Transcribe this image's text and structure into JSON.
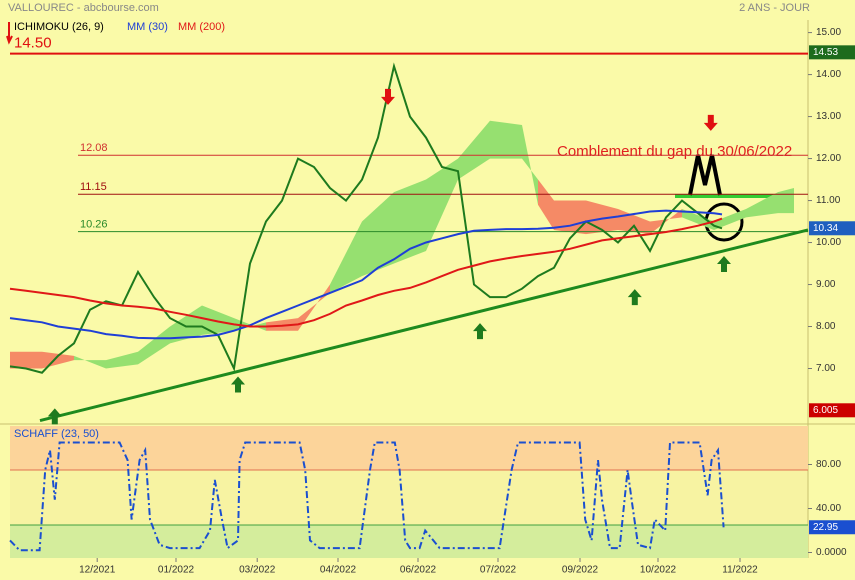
{
  "header": {
    "source": "VALLOUREC - abcbourse.com",
    "period": "2 ANS - JOUR"
  },
  "chart_data": [
    {
      "type": "line",
      "legend_title": "ICHIMOKU (26, 9)",
      "annotation": "Comblement du gap du 30/06/2022",
      "xlim": [
        0,
        99.75
      ],
      "ylim": [
        5.75,
        15.3
      ],
      "yticks": [
        {
          "value": 15,
          "label": "15.00"
        },
        {
          "value": 14,
          "label": "14.00"
        },
        {
          "value": 13,
          "label": "13.00"
        },
        {
          "value": 12,
          "label": "12.00"
        },
        {
          "value": 11,
          "label": "11.00"
        },
        {
          "value": 10,
          "label": "10.00"
        },
        {
          "value": 9,
          "label": "9.00"
        },
        {
          "value": 8,
          "label": "8.00"
        },
        {
          "value": 7,
          "label": "7.00"
        }
      ],
      "xticks": [
        {
          "value": 10.9,
          "label": "12/2021"
        },
        {
          "value": 20.75,
          "label": "01/2022"
        },
        {
          "value": 30.9,
          "label": "03/2022"
        },
        {
          "value": 41,
          "label": "04/2022"
        },
        {
          "value": 51,
          "label": "06/2022"
        },
        {
          "value": 61,
          "label": "07/2022"
        },
        {
          "value": 71.25,
          "label": "09/2022"
        },
        {
          "value": 81,
          "label": "10/2022"
        },
        {
          "value": 91.25,
          "label": "11/2022"
        }
      ],
      "x": [
        0,
        2,
        4,
        6,
        8,
        10,
        12,
        14,
        16,
        18,
        20,
        22,
        24,
        26,
        28,
        30,
        32,
        34,
        36,
        38,
        40,
        42,
        44,
        46,
        48,
        50,
        52,
        54,
        56,
        58,
        60,
        62,
        64,
        66,
        68,
        70,
        72,
        74,
        76,
        78,
        80,
        82,
        84,
        86,
        88,
        89
      ],
      "series": [
        {
          "color": "#1e7a1e",
          "values": [
            7.05,
            7.0,
            6.9,
            7.3,
            7.6,
            8.4,
            8.6,
            8.5,
            9.3,
            8.7,
            8.2,
            8.0,
            8.0,
            7.8,
            7.0,
            9.5,
            10.5,
            11.0,
            12.0,
            11.8,
            11.3,
            11.0,
            11.5,
            12.5,
            14.2,
            13.0,
            12.5,
            11.8,
            11.7,
            9.0,
            8.7,
            8.7,
            8.9,
            9.2,
            9.4,
            10.1,
            10.5,
            10.3,
            10.0,
            10.4,
            9.8,
            10.6,
            11.0,
            10.7,
            10.4,
            10.34
          ],
          "last_color": "#1f5fbf"
        },
        {
          "name": "MM (30)",
          "color": "#1f3fd6",
          "values": [
            8.2,
            8.15,
            8.1,
            8.0,
            7.95,
            7.9,
            7.82,
            7.78,
            7.73,
            7.72,
            7.72,
            7.74,
            7.76,
            7.8,
            7.9,
            8.03,
            8.2,
            8.35,
            8.5,
            8.65,
            8.8,
            8.95,
            9.1,
            9.4,
            9.6,
            9.85,
            10.0,
            10.1,
            10.2,
            10.28,
            10.3,
            10.32,
            10.32,
            10.33,
            10.35,
            10.4,
            10.5,
            10.57,
            10.62,
            10.68,
            10.74,
            10.76,
            10.74,
            10.72,
            10.7,
            10.67
          ]
        },
        {
          "name": "MM (200)",
          "color": "#e01818",
          "values": [
            8.9,
            8.85,
            8.8,
            8.75,
            8.7,
            8.62,
            8.55,
            8.5,
            8.47,
            8.43,
            8.35,
            8.28,
            8.2,
            8.12,
            8.05,
            8.0,
            8.0,
            8.02,
            8.05,
            8.15,
            8.3,
            8.5,
            8.62,
            8.75,
            8.85,
            8.92,
            9.05,
            9.2,
            9.35,
            9.45,
            9.55,
            9.62,
            9.68,
            9.73,
            9.78,
            9.85,
            9.95,
            10.05,
            10.1,
            10.15,
            10.2,
            10.25,
            10.32,
            10.4,
            10.5,
            10.57
          ]
        }
      ],
      "cloud": {
        "up_color": "#96e070",
        "down_color": "#f58a66",
        "x": [
          0,
          4,
          8,
          12,
          16,
          20,
          24,
          28,
          32,
          36,
          40,
          44,
          48,
          52,
          56,
          60,
          64,
          66,
          68,
          72,
          76,
          80,
          84,
          88,
          92,
          96,
          98
        ],
        "span_a": [
          7.0,
          7.0,
          7.2,
          7.2,
          7.4,
          8.0,
          8.5,
          8.2,
          7.9,
          7.9,
          9.0,
          10.5,
          11.2,
          11.5,
          12.0,
          12.9,
          12.8,
          10.9,
          10.3,
          10.2,
          10.3,
          10.2,
          10.8,
          10.5,
          10.8,
          11.2,
          11.3
        ],
        "span_b": [
          7.4,
          7.4,
          7.3,
          7.0,
          7.1,
          7.6,
          7.8,
          7.9,
          8.1,
          8.2,
          8.8,
          9.2,
          9.5,
          9.8,
          11.5,
          12.0,
          12.0,
          11.5,
          11.0,
          11.0,
          10.8,
          10.5,
          10.6,
          10.3,
          10.6,
          10.7,
          10.7
        ]
      },
      "levels": [
        {
          "value": 14.5,
          "label": "14.50",
          "color": "#e01010",
          "full": true
        },
        {
          "value": 12.08,
          "label": "12.08",
          "color": "#d03030"
        },
        {
          "value": 11.15,
          "label": "11.15",
          "color": "#a01010"
        },
        {
          "value": 10.26,
          "label": "10.26",
          "color": "#2a8a2a"
        }
      ],
      "price_tags": [
        {
          "value": 14.53,
          "color": "#1d6b1d"
        },
        {
          "value": 6.005,
          "color": "#cc0000"
        }
      ],
      "trendline": {
        "x": [
          3.75,
          99.75
        ],
        "y": [
          5.76,
          10.3
        ],
        "color": "#1e8a1e"
      },
      "arrows": [
        {
          "x": 5.6,
          "y": 6.05,
          "dir": "up"
        },
        {
          "x": 28.5,
          "y": 6.81,
          "dir": "up"
        },
        {
          "x": 58.75,
          "y": 8.08,
          "dir": "up"
        },
        {
          "x": 78.1,
          "y": 8.89,
          "dir": "up"
        },
        {
          "x": 89.25,
          "y": 9.68,
          "dir": "up"
        },
        {
          "x": 47.25,
          "y": 13.28,
          "dir": "down"
        },
        {
          "x": 87.6,
          "y": 12.66,
          "dir": "down"
        }
      ]
    },
    {
      "type": "line",
      "xlim": [
        0,
        99.75
      ],
      "ylim": [
        -5,
        115
      ],
      "yticks": [
        {
          "value": 80,
          "label": "80.00"
        },
        {
          "value": 40,
          "label": "40.00"
        },
        {
          "value": 0,
          "label": "0.0000"
        }
      ],
      "overbought": 75,
      "oversold": 25,
      "x": [
        0,
        1.2,
        3.7,
        4.4,
        5,
        5.6,
        6.2,
        7.5,
        13.7,
        14.7,
        15.2,
        16.2,
        16.9,
        17.5,
        18.7,
        20,
        23.7,
        25,
        25.6,
        26.5,
        27.2,
        28.5,
        28.7,
        29.4,
        36.2,
        36.9,
        37.5,
        38.7,
        41.2,
        43.7,
        45,
        45.6,
        48.1,
        48.7,
        49.4,
        50,
        51.2,
        51.9,
        53.7,
        61.2,
        62.7,
        63.5,
        71.2,
        71.9,
        72.7,
        73.5,
        74,
        75,
        76.2,
        77.2,
        77.7,
        78.5,
        80,
        80.6,
        81.9,
        82.5,
        86.2,
        87.2,
        87.7,
        88.5,
        89.2
      ],
      "series": [
        {
          "name": "SCHAFF (23, 50)",
          "color": "#1a4fd0",
          "values": [
            11,
            2,
            2,
            75,
            93,
            48,
            100,
            100,
            100,
            84,
            30,
            84,
            93,
            30,
            7,
            4,
            4,
            20,
            66,
            30,
            4,
            11,
            84,
            100,
            100,
            75,
            11,
            4,
            4,
            4,
            75,
            100,
            100,
            75,
            11,
            4,
            4,
            20,
            4,
            4,
            75,
            100,
            100,
            30,
            11,
            84,
            48,
            4,
            4,
            75,
            48,
            7,
            4,
            30,
            20,
            100,
            100,
            52,
            84,
            93,
            22.95
          ]
        }
      ]
    }
  ]
}
